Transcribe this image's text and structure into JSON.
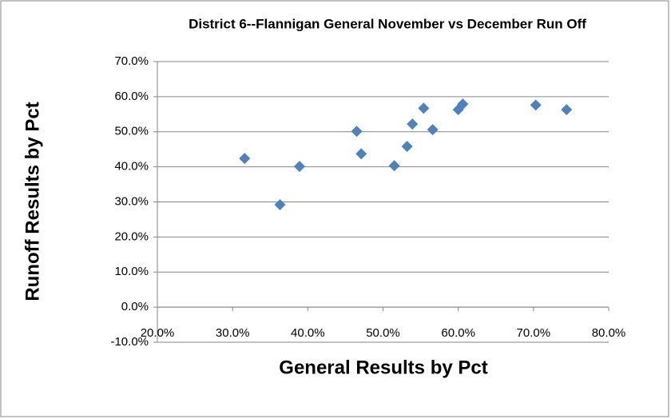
{
  "chart_data": {
    "type": "scatter",
    "title": "District 6--Flannigan General  November vs December Run Off",
    "x_label": "General Results by Pct",
    "y_label": "Runoff Results  by  Pct",
    "color": "#4f81bd",
    "grid": true,
    "x": [
      31.6,
      36.3,
      38.9,
      46.5,
      47.1,
      51.5,
      53.2,
      53.9,
      55.4,
      56.6,
      60.0,
      60.6,
      70.3,
      74.4
    ],
    "values": [
      42.4,
      29.2,
      40.1,
      50.1,
      43.7,
      40.3,
      45.8,
      52.2,
      56.7,
      50.6,
      56.3,
      57.9,
      57.6,
      56.3
    ],
    "xlim": [
      20,
      80
    ],
    "ylim": [
      -10,
      70
    ],
    "xticks": [
      {
        "value": 20,
        "label": "20.0%"
      },
      {
        "value": 30,
        "label": "30.0%"
      },
      {
        "value": 40,
        "label": "40.0%"
      },
      {
        "value": 50,
        "label": "50.0%"
      },
      {
        "value": 60,
        "label": "60.0%"
      },
      {
        "value": 70,
        "label": "70.0%"
      },
      {
        "value": 80,
        "label": "80.0%"
      }
    ],
    "yticks": [
      {
        "value": -10,
        "label": "-10.0%"
      },
      {
        "value": 0,
        "label": "0.0%"
      },
      {
        "value": 10,
        "label": "10.0%"
      },
      {
        "value": 20,
        "label": "20.0%"
      },
      {
        "value": 30,
        "label": "30.0%"
      },
      {
        "value": 40,
        "label": "40.0%"
      },
      {
        "value": 50,
        "label": "50.0%"
      },
      {
        "value": 60,
        "label": "60.0%"
      },
      {
        "value": 70,
        "label": "70.0%"
      }
    ]
  }
}
